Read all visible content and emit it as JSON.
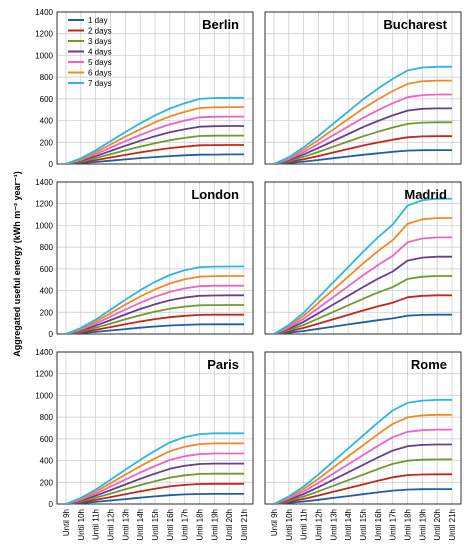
{
  "chart_data": {
    "type": "line",
    "ylabel": "Aggregated useful energy (kWh m⁻² year⁻¹)",
    "ylim": [
      0,
      1400
    ],
    "yticks": [
      0,
      200,
      400,
      600,
      800,
      1000,
      1200,
      1400
    ],
    "x": [
      "Until 9h",
      "Until 10h",
      "Until 11h",
      "Until 12h",
      "Until 13h",
      "Until 14h",
      "Until 15h",
      "Until 16h",
      "Until 17h",
      "Until 18h",
      "Until 19h",
      "Until 20h",
      "Until 21h"
    ],
    "grid": true,
    "legend_position": "top-left of first panel",
    "colors": [
      "#1f5fa6",
      "#c0281b",
      "#6f9a32",
      "#6b3d8e",
      "#ef62c9",
      "#f08a24",
      "#2bb6e3"
    ],
    "legend": [
      "1 day",
      "2 days",
      "3 days",
      "4 days",
      "5 days",
      "6 days",
      "7 days"
    ],
    "panels": [
      {
        "title": "Berlin",
        "series": [
          {
            "name": "1 day",
            "values": [
              0,
              8,
              18,
              30,
              42,
              54,
              64,
              73,
              80,
              86,
              87,
              88,
              88
            ]
          },
          {
            "name": "2 days",
            "values": [
              0,
              15,
              36,
              60,
              84,
              107,
              128,
              146,
              160,
              172,
              174,
              175,
              175
            ]
          },
          {
            "name": "3 days",
            "values": [
              0,
              23,
              54,
              90,
              126,
              160,
              192,
              219,
              240,
              258,
              261,
              262,
              262
            ]
          },
          {
            "name": "4 days",
            "values": [
              0,
              30,
              72,
              120,
              168,
              214,
              256,
              292,
              320,
              344,
              348,
              350,
              350
            ]
          },
          {
            "name": "5 days",
            "values": [
              0,
              37,
              90,
              150,
              210,
              267,
              320,
              365,
              400,
              430,
              435,
              437,
              437
            ]
          },
          {
            "name": "6 days",
            "values": [
              0,
              44,
              108,
              180,
              252,
              320,
              384,
              438,
              480,
              516,
              522,
              524,
              524
            ]
          },
          {
            "name": "7 days",
            "values": [
              0,
              52,
              126,
              210,
              294,
              374,
              448,
              511,
              560,
              600,
              608,
              610,
              610
            ]
          }
        ]
      },
      {
        "title": "Bucharest",
        "series": [
          {
            "name": "1 day",
            "values": [
              0,
              9,
              22,
              37,
              53,
              69,
              85,
              99,
              112,
              123,
              127,
              128,
              128
            ]
          },
          {
            "name": "2 days",
            "values": [
              0,
              18,
              44,
              74,
              106,
              138,
              170,
              198,
              224,
              246,
              254,
              256,
              256
            ]
          },
          {
            "name": "3 days",
            "values": [
              0,
              27,
              66,
              111,
              159,
              207,
              255,
              297,
              336,
              369,
              381,
              384,
              384
            ]
          },
          {
            "name": "4 days",
            "values": [
              0,
              36,
              88,
              148,
              212,
              276,
              340,
              396,
              448,
              492,
              508,
              512,
              512
            ]
          },
          {
            "name": "5 days",
            "values": [
              0,
              45,
              110,
              185,
              265,
              345,
              425,
              495,
              560,
              615,
              635,
              640,
              640
            ]
          },
          {
            "name": "6 days",
            "values": [
              0,
              54,
              132,
              222,
              318,
              414,
              510,
              594,
              672,
              738,
              762,
              768,
              768
            ]
          },
          {
            "name": "7 days",
            "values": [
              0,
              63,
              154,
              259,
              371,
              483,
              595,
              693,
              784,
              861,
              889,
              895,
              896
            ]
          }
        ]
      },
      {
        "title": "London",
        "series": [
          {
            "name": "1 day",
            "values": [
              0,
              8,
              19,
              32,
              45,
              58,
              69,
              78,
              84,
              88,
              89,
              89,
              89
            ]
          },
          {
            "name": "2 days",
            "values": [
              0,
              16,
              38,
              64,
              90,
              115,
              137,
              155,
              168,
              176,
              178,
              178,
              178
            ]
          },
          {
            "name": "3 days",
            "values": [
              0,
              24,
              57,
              96,
              135,
              173,
              206,
              233,
              252,
              264,
              266,
              267,
              267
            ]
          },
          {
            "name": "4 days",
            "values": [
              0,
              32,
              76,
              128,
              180,
              230,
              274,
              310,
              336,
              352,
              355,
              356,
              356
            ]
          },
          {
            "name": "5 days",
            "values": [
              0,
              40,
              95,
              160,
              225,
              288,
              343,
              388,
              420,
              440,
              444,
              445,
              445
            ]
          },
          {
            "name": "6 days",
            "values": [
              0,
              48,
              114,
              192,
              270,
              345,
              411,
              465,
              504,
              528,
              533,
              534,
              534
            ]
          },
          {
            "name": "7 days",
            "values": [
              0,
              56,
              133,
              224,
              315,
              403,
              480,
              543,
              588,
              616,
              621,
              622,
              623
            ]
          }
        ]
      },
      {
        "title": "Madrid",
        "series": [
          {
            "name": "1 day",
            "values": [
              0,
              12,
              28,
              48,
              68,
              88,
              108,
              127,
              144,
              169,
              176,
              178,
              178
            ]
          },
          {
            "name": "2 days",
            "values": [
              0,
              24,
              56,
              96,
              136,
              176,
              216,
              254,
              288,
              338,
              352,
              356,
              356
            ]
          },
          {
            "name": "3 days",
            "values": [
              0,
              36,
              84,
              144,
              204,
              264,
              324,
              381,
              432,
              507,
              528,
              534,
              534
            ]
          },
          {
            "name": "4 days",
            "values": [
              0,
              48,
              112,
              192,
              272,
              352,
              432,
              508,
              576,
              676,
              704,
              712,
              712
            ]
          },
          {
            "name": "5 days",
            "values": [
              0,
              60,
              140,
              240,
              340,
              440,
              540,
              635,
              720,
              845,
              880,
              890,
              890
            ]
          },
          {
            "name": "6 days",
            "values": [
              0,
              72,
              168,
              288,
              408,
              528,
              648,
              762,
              864,
              1014,
              1056,
              1068,
              1068
            ]
          },
          {
            "name": "7 days",
            "values": [
              0,
              84,
              196,
              336,
              476,
              616,
              756,
              889,
              1008,
              1183,
              1232,
              1246,
              1246
            ]
          }
        ]
      },
      {
        "title": "Paris",
        "series": [
          {
            "name": "1 day",
            "values": [
              0,
              8,
              19,
              32,
              45,
              58,
              70,
              81,
              88,
              92,
              93,
              93,
              93
            ]
          },
          {
            "name": "2 days",
            "values": [
              0,
              16,
              38,
              64,
              90,
              116,
              140,
              162,
              176,
              184,
              186,
              186,
              186
            ]
          },
          {
            "name": "3 days",
            "values": [
              0,
              24,
              57,
              96,
              135,
              174,
              210,
              243,
              264,
              276,
              279,
              279,
              279
            ]
          },
          {
            "name": "4 days",
            "values": [
              0,
              32,
              76,
              128,
              180,
              232,
              280,
              324,
              352,
              368,
              372,
              372,
              372
            ]
          },
          {
            "name": "5 days",
            "values": [
              0,
              40,
              95,
              160,
              225,
              290,
              350,
              405,
              440,
              460,
              465,
              465,
              465
            ]
          },
          {
            "name": "6 days",
            "values": [
              0,
              48,
              114,
              192,
              270,
              348,
              420,
              486,
              528,
              552,
              558,
              558,
              558
            ]
          },
          {
            "name": "7 days",
            "values": [
              0,
              56,
              133,
              224,
              315,
              406,
              490,
              567,
              616,
              644,
              651,
              651,
              651
            ]
          }
        ]
      },
      {
        "title": "Rome",
        "series": [
          {
            "name": "1 day",
            "values": [
              0,
              10,
              23,
              39,
              56,
              73,
              90,
              107,
              123,
              133,
              136,
              137,
              137
            ]
          },
          {
            "name": "2 days",
            "values": [
              0,
              20,
              46,
              78,
              112,
              146,
              180,
              214,
              246,
              266,
              272,
              274,
              274
            ]
          },
          {
            "name": "3 days",
            "values": [
              0,
              30,
              69,
              117,
              168,
              219,
              270,
              321,
              369,
              399,
              408,
              411,
              411
            ]
          },
          {
            "name": "4 days",
            "values": [
              0,
              40,
              92,
              156,
              224,
              292,
              360,
              428,
              492,
              532,
              544,
              548,
              548
            ]
          },
          {
            "name": "5 days",
            "values": [
              0,
              50,
              115,
              195,
              280,
              365,
              450,
              535,
              615,
              665,
              680,
              685,
              685
            ]
          },
          {
            "name": "6 days",
            "values": [
              0,
              60,
              138,
              234,
              336,
              438,
              540,
              642,
              738,
              798,
              816,
              822,
              822
            ]
          },
          {
            "name": "7 days",
            "values": [
              0,
              70,
              161,
              273,
              392,
              511,
              630,
              749,
              861,
              931,
              952,
              959,
              959
            ]
          }
        ]
      }
    ]
  }
}
